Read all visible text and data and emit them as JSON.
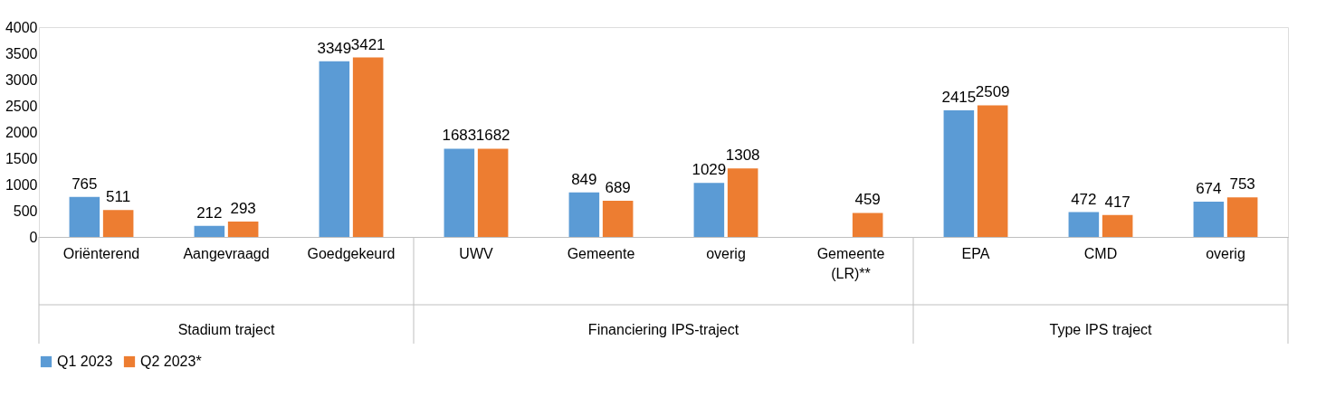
{
  "chart_data": {
    "type": "bar",
    "categories": [
      "Oriënterend",
      "Aangevraagd",
      "Goedgekeurd",
      "UWV",
      "Gemeente",
      "overig",
      "Gemeente (LR)**",
      "EPA",
      "CMD",
      "overig"
    ],
    "series": [
      {
        "name": "Q1 2023",
        "color": "#5b9bd5",
        "values": [
          765,
          212,
          3349,
          1683,
          849,
          1029,
          null,
          2415,
          472,
          674
        ]
      },
      {
        "name": "Q2 2023*",
        "color": "#ed7d31",
        "values": [
          511,
          293,
          3421,
          1682,
          689,
          1308,
          459,
          2509,
          417,
          753
        ]
      }
    ],
    "ylim": [
      0,
      4000
    ],
    "yticks": [
      0,
      500,
      1000,
      1500,
      2000,
      2500,
      3000,
      3500,
      4000
    ],
    "data_labels": true,
    "grid": false,
    "legend": "bottom",
    "annotations": [
      "Stadium traject",
      "Financiering IPS-traject",
      "Type IPS traject"
    ]
  }
}
